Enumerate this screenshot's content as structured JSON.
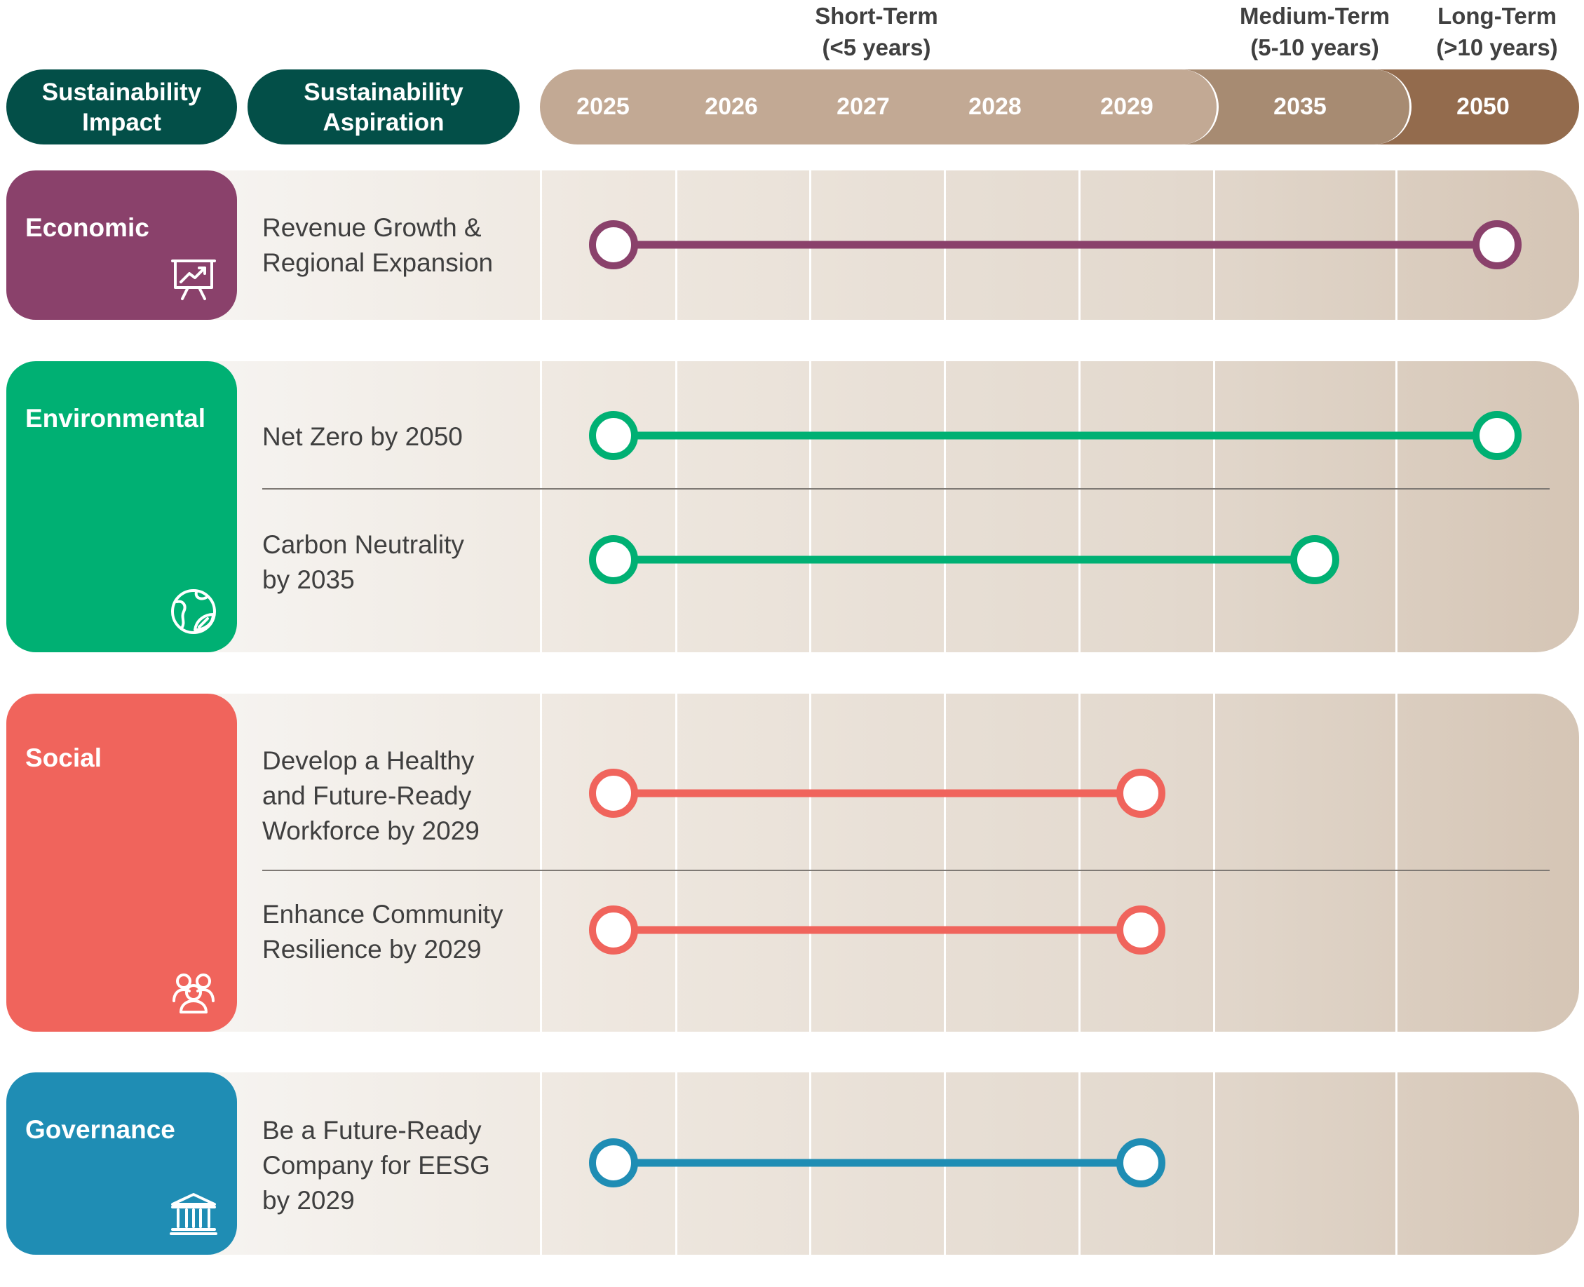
{
  "colors": {
    "header_pill": "#034f48",
    "short_term": "#c2a994",
    "medium_term": "#a78b72",
    "long_term": "#936b4d",
    "economic": "#8a416b",
    "environmental": "#00b073",
    "social": "#f0645c",
    "governance": "#1f8db4"
  },
  "term_labels": {
    "short": [
      "Short-Term",
      "(<5 years)"
    ],
    "medium": [
      "Medium-Term",
      "(5-10 years)"
    ],
    "long": [
      "Long-Term",
      "(>10 years)"
    ]
  },
  "headers": {
    "impact": [
      "Sustainability",
      "Impact"
    ],
    "aspiration": [
      "Sustainability",
      "Aspiration"
    ]
  },
  "years": [
    "2025",
    "2026",
    "2027",
    "2028",
    "2029",
    "2035",
    "2050"
  ],
  "categories": [
    {
      "name": "Economic",
      "icon": "presentation-chart-icon",
      "color": "#8a416b",
      "aspirations": [
        {
          "text": [
            "Revenue Growth &",
            "Regional Expansion"
          ],
          "start": "2025",
          "end": "2050"
        }
      ]
    },
    {
      "name": "Environmental",
      "icon": "earth-leaf-icon",
      "color": "#00b073",
      "aspirations": [
        {
          "text": [
            "Net Zero by 2050"
          ],
          "start": "2025",
          "end": "2050"
        },
        {
          "text": [
            "Carbon Neutrality",
            "by 2035"
          ],
          "start": "2025",
          "end": "2035"
        }
      ]
    },
    {
      "name": "Social",
      "icon": "people-group-icon",
      "color": "#f0645c",
      "aspirations": [
        {
          "text": [
            "Develop a Healthy",
            "and Future-Ready",
            "Workforce by 2029"
          ],
          "start": "2025",
          "end": "2029"
        },
        {
          "text": [
            "Enhance Community",
            "Resilience by 2029"
          ],
          "start": "2025",
          "end": "2029"
        }
      ]
    },
    {
      "name": "Governance",
      "icon": "bank-building-icon",
      "color": "#1f8db4",
      "aspirations": [
        {
          "text": [
            "Be a Future-Ready",
            "Company for EESG",
            "by 2029"
          ],
          "start": "2025",
          "end": "2029"
        }
      ]
    }
  ]
}
